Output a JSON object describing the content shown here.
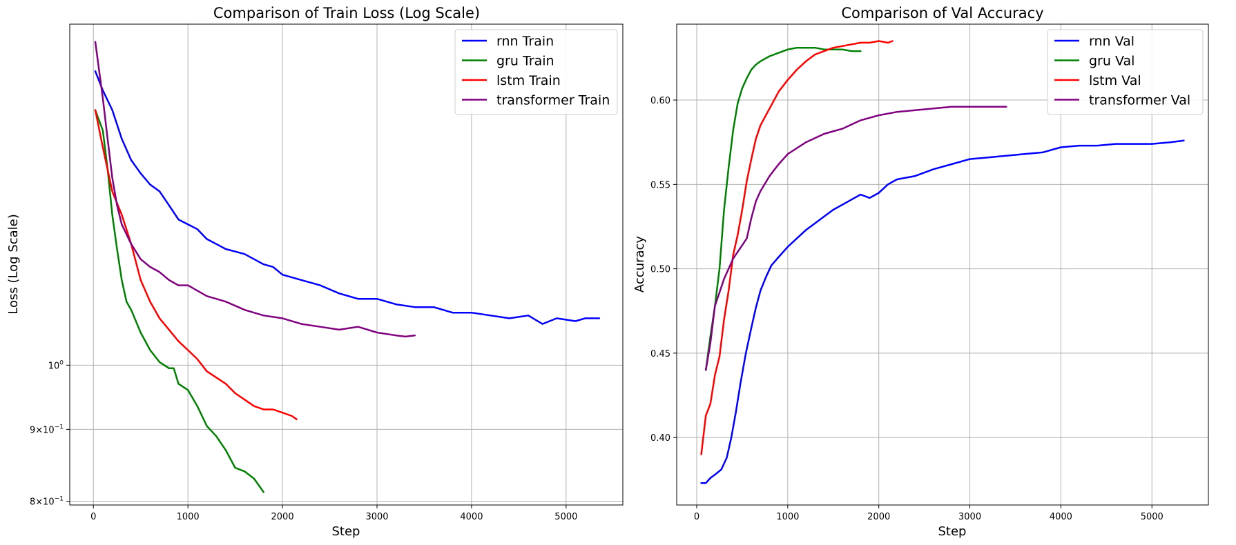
{
  "chart_data": [
    {
      "type": "line",
      "title": "Comparison of Train Loss (Log Scale)",
      "xlabel": "Step",
      "ylabel": "Loss (Log Scale)",
      "xscale": "linear",
      "yscale": "log",
      "xlim": [
        -250,
        5600
      ],
      "ylim": [
        0.795,
        1.75
      ],
      "grid": true,
      "legend_position": "top-right",
      "x_ticks": [
        {
          "value": 0,
          "label": "0"
        },
        {
          "value": 1000,
          "label": "1000"
        },
        {
          "value": 2000,
          "label": "2000"
        },
        {
          "value": 3000,
          "label": "3000"
        },
        {
          "value": 4000,
          "label": "4000"
        },
        {
          "value": 5000,
          "label": "5000"
        }
      ],
      "y_ticks": [
        {
          "value": 0.8,
          "base": "8×10",
          "exp": "−1"
        },
        {
          "value": 0.9,
          "base": "9×10",
          "exp": "−1"
        },
        {
          "value": 1.0,
          "base": "10",
          "exp": "0"
        }
      ],
      "series": [
        {
          "name": "rnn Train",
          "color": "#0000ff",
          "x": [
            20,
            100,
            200,
            300,
            400,
            500,
            600,
            700,
            800,
            900,
            1000,
            1100,
            1200,
            1300,
            1400,
            1500,
            1600,
            1700,
            1800,
            1900,
            2000,
            2200,
            2400,
            2600,
            2800,
            3000,
            3200,
            3400,
            3600,
            3800,
            4000,
            4200,
            4400,
            4600,
            4750,
            4900,
            5100,
            5200,
            5350
          ],
          "y": [
            1.62,
            1.57,
            1.52,
            1.45,
            1.4,
            1.37,
            1.345,
            1.33,
            1.3,
            1.27,
            1.26,
            1.25,
            1.23,
            1.22,
            1.21,
            1.205,
            1.2,
            1.19,
            1.18,
            1.175,
            1.16,
            1.15,
            1.14,
            1.125,
            1.115,
            1.115,
            1.105,
            1.1,
            1.1,
            1.09,
            1.09,
            1.085,
            1.08,
            1.085,
            1.07,
            1.08,
            1.075,
            1.08,
            1.08
          ]
        },
        {
          "name": "gru Train",
          "color": "#008000",
          "x": [
            20,
            100,
            150,
            200,
            250,
            300,
            350,
            400,
            500,
            600,
            700,
            800,
            850,
            900,
            1000,
            1100,
            1200,
            1300,
            1400,
            1500,
            1600,
            1700,
            1800
          ],
          "y": [
            1.52,
            1.47,
            1.38,
            1.28,
            1.21,
            1.15,
            1.11,
            1.095,
            1.055,
            1.025,
            1.005,
            0.995,
            0.995,
            0.97,
            0.96,
            0.935,
            0.905,
            0.89,
            0.87,
            0.845,
            0.84,
            0.83,
            0.812
          ]
        },
        {
          "name": "lstm Train",
          "color": "#ff0000",
          "x": [
            20,
            100,
            200,
            300,
            400,
            500,
            600,
            700,
            800,
            900,
            1000,
            1100,
            1200,
            1300,
            1400,
            1500,
            1600,
            1700,
            1800,
            1900,
            2000,
            2100,
            2150
          ],
          "y": [
            1.52,
            1.43,
            1.33,
            1.28,
            1.22,
            1.15,
            1.11,
            1.08,
            1.06,
            1.04,
            1.025,
            1.01,
            0.99,
            0.98,
            0.97,
            0.955,
            0.945,
            0.935,
            0.93,
            0.93,
            0.925,
            0.92,
            0.915
          ]
        },
        {
          "name": "transformer Train",
          "color": "#800080",
          "x": [
            20,
            100,
            150,
            200,
            250,
            300,
            400,
            500,
            600,
            700,
            800,
            900,
            1000,
            1200,
            1400,
            1600,
            1800,
            2000,
            2200,
            2400,
            2600,
            2800,
            3000,
            3200,
            3300,
            3400
          ],
          "y": [
            1.7,
            1.55,
            1.45,
            1.36,
            1.3,
            1.26,
            1.22,
            1.19,
            1.175,
            1.165,
            1.15,
            1.14,
            1.14,
            1.12,
            1.11,
            1.095,
            1.085,
            1.08,
            1.07,
            1.065,
            1.06,
            1.065,
            1.055,
            1.05,
            1.048,
            1.05
          ]
        }
      ]
    },
    {
      "type": "line",
      "title": "Comparison of Val Accuracy",
      "xlabel": "Step",
      "ylabel": "Accuracy",
      "xlim": [
        -220,
        5620
      ],
      "ylim": [
        0.36,
        0.645
      ],
      "grid": true,
      "legend_position": "top-right",
      "x_ticks": [
        {
          "value": 0,
          "label": "0"
        },
        {
          "value": 1000,
          "label": "1000"
        },
        {
          "value": 2000,
          "label": "2000"
        },
        {
          "value": 3000,
          "label": "3000"
        },
        {
          "value": 4000,
          "label": "4000"
        },
        {
          "value": 5000,
          "label": "5000"
        }
      ],
      "y_ticks": [
        {
          "value": 0.4,
          "label": "0.40"
        },
        {
          "value": 0.45,
          "label": "0.45"
        },
        {
          "value": 0.5,
          "label": "0.50"
        },
        {
          "value": 0.55,
          "label": "0.55"
        },
        {
          "value": 0.6,
          "label": "0.60"
        }
      ],
      "series": [
        {
          "name": "rnn Val",
          "color": "#0000ff",
          "x": [
            50,
            100,
            150,
            200,
            270,
            330,
            380,
            430,
            480,
            540,
            600,
            650,
            700,
            760,
            820,
            900,
            1000,
            1100,
            1200,
            1300,
            1400,
            1500,
            1600,
            1700,
            1800,
            1900,
            2000,
            2100,
            2200,
            2400,
            2600,
            2800,
            3000,
            3200,
            3400,
            3600,
            3800,
            4000,
            4200,
            4400,
            4600,
            4800,
            5000,
            5200,
            5350
          ],
          "y": [
            0.373,
            0.373,
            0.376,
            0.378,
            0.381,
            0.388,
            0.4,
            0.415,
            0.432,
            0.45,
            0.465,
            0.477,
            0.487,
            0.495,
            0.502,
            0.507,
            0.513,
            0.518,
            0.523,
            0.527,
            0.531,
            0.535,
            0.538,
            0.541,
            0.544,
            0.542,
            0.545,
            0.55,
            0.553,
            0.555,
            0.559,
            0.562,
            0.565,
            0.566,
            0.567,
            0.568,
            0.569,
            0.572,
            0.573,
            0.573,
            0.574,
            0.574,
            0.574,
            0.575,
            0.576
          ]
        },
        {
          "name": "gru Val",
          "color": "#008000",
          "x": [
            100,
            150,
            200,
            250,
            300,
            350,
            400,
            450,
            500,
            550,
            600,
            650,
            700,
            800,
            900,
            1000,
            1100,
            1200,
            1300,
            1400,
            1500,
            1600,
            1700,
            1800
          ],
          "y": [
            0.44,
            0.46,
            0.478,
            0.5,
            0.535,
            0.56,
            0.582,
            0.598,
            0.607,
            0.613,
            0.618,
            0.621,
            0.623,
            0.626,
            0.628,
            0.63,
            0.631,
            0.631,
            0.631,
            0.63,
            0.63,
            0.63,
            0.629,
            0.629
          ]
        },
        {
          "name": "lstm Val",
          "color": "#ff0000",
          "x": [
            50,
            100,
            150,
            200,
            250,
            300,
            350,
            400,
            450,
            500,
            550,
            600,
            650,
            700,
            800,
            900,
            1000,
            1100,
            1200,
            1300,
            1400,
            1500,
            1600,
            1700,
            1800,
            1900,
            2000,
            2100,
            2150
          ],
          "y": [
            0.39,
            0.413,
            0.42,
            0.437,
            0.448,
            0.47,
            0.487,
            0.508,
            0.52,
            0.535,
            0.552,
            0.565,
            0.577,
            0.585,
            0.595,
            0.605,
            0.612,
            0.618,
            0.623,
            0.627,
            0.629,
            0.631,
            0.632,
            0.633,
            0.634,
            0.634,
            0.635,
            0.634,
            0.635
          ]
        },
        {
          "name": "transformer Val",
          "color": "#800080",
          "x": [
            100,
            150,
            200,
            250,
            300,
            350,
            400,
            450,
            500,
            550,
            600,
            650,
            700,
            800,
            900,
            1000,
            1200,
            1400,
            1600,
            1800,
            2000,
            2200,
            2400,
            2600,
            2800,
            3000,
            3200,
            3400
          ],
          "y": [
            0.44,
            0.456,
            0.478,
            0.486,
            0.494,
            0.5,
            0.506,
            0.51,
            0.514,
            0.518,
            0.53,
            0.54,
            0.546,
            0.555,
            0.562,
            0.568,
            0.575,
            0.58,
            0.583,
            0.588,
            0.591,
            0.593,
            0.594,
            0.595,
            0.596,
            0.596,
            0.596,
            0.596
          ]
        }
      ]
    }
  ]
}
